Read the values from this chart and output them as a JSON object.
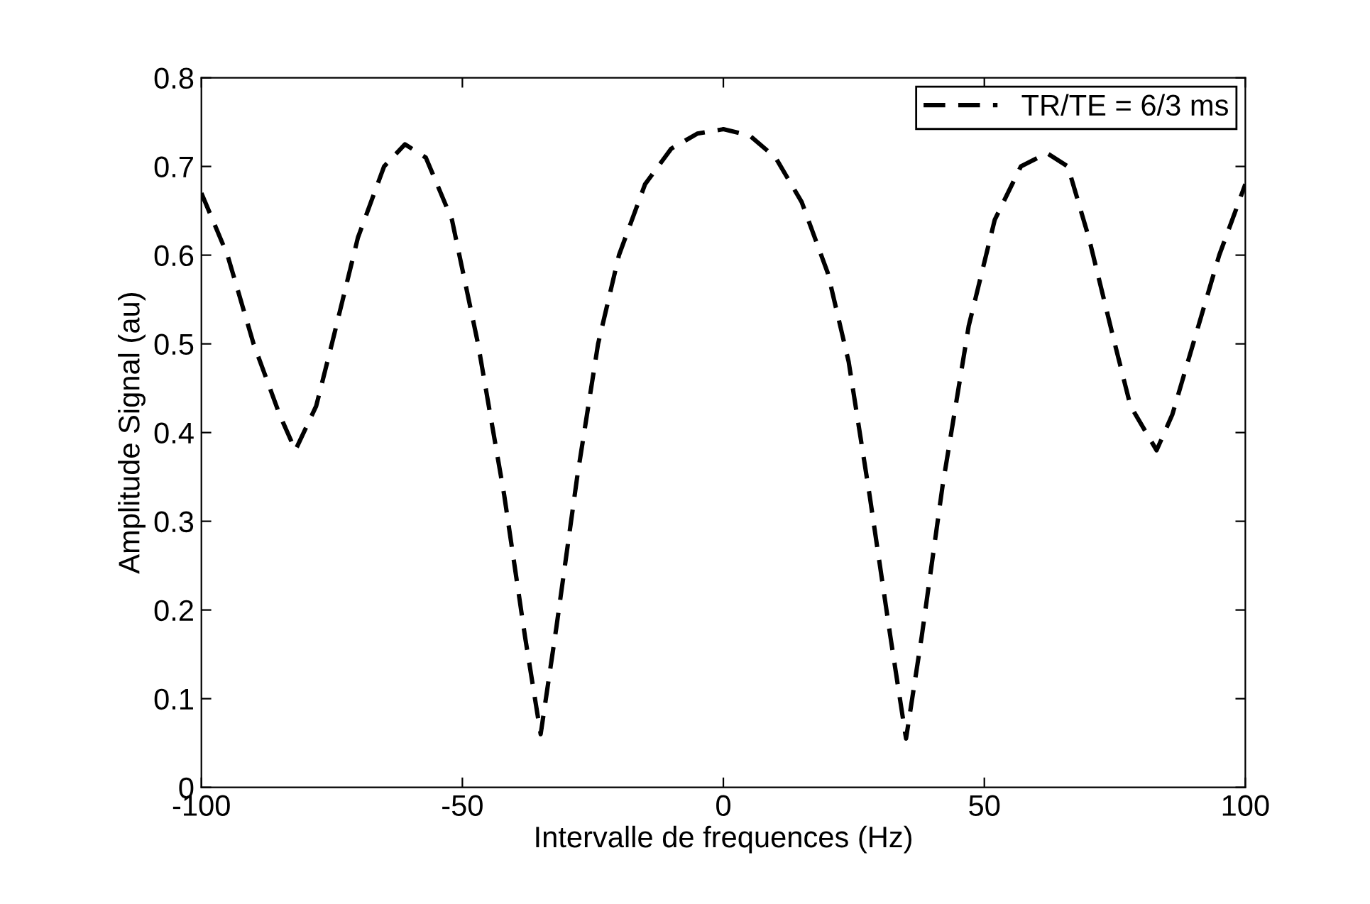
{
  "chart_data": {
    "type": "line",
    "xlabel": "Intervalle de frequences (Hz)",
    "ylabel": "Amplitude Signal (au)",
    "x": [
      -100,
      -95,
      -90,
      -85,
      -82,
      -78,
      -75,
      -70,
      -65,
      -61,
      -57,
      -52,
      -47,
      -42,
      -38,
      -35,
      -32,
      -28,
      -24,
      -20,
      -15,
      -10,
      -5,
      0,
      5,
      10,
      15,
      20,
      24,
      28,
      32,
      35,
      38,
      42,
      47,
      52,
      57,
      62,
      66,
      70,
      75,
      78,
      83,
      86,
      90,
      95,
      100
    ],
    "series": [
      {
        "name": "TR/TE = 6/3 ms",
        "color": "#000000",
        "values": [
          0.67,
          0.6,
          0.5,
          0.42,
          0.38,
          0.43,
          0.5,
          0.62,
          0.7,
          0.725,
          0.71,
          0.64,
          0.5,
          0.33,
          0.17,
          0.06,
          0.18,
          0.35,
          0.5,
          0.6,
          0.68,
          0.72,
          0.737,
          0.742,
          0.735,
          0.71,
          0.66,
          0.58,
          0.48,
          0.33,
          0.17,
          0.055,
          0.17,
          0.34,
          0.52,
          0.64,
          0.7,
          0.715,
          0.7,
          0.62,
          0.5,
          0.43,
          0.38,
          0.42,
          0.5,
          0.6,
          0.68
        ]
      }
    ],
    "xlim": [
      -100,
      100
    ],
    "xticks": [
      -100,
      -50,
      0,
      50,
      100
    ],
    "ylim": [
      0,
      0.8
    ],
    "yticks": [
      0,
      0.1,
      0.2,
      0.3,
      0.4,
      0.5,
      0.6,
      0.7,
      0.8
    ],
    "line_style": "dashed",
    "marker": "none",
    "grid": false,
    "legend": "top right"
  }
}
